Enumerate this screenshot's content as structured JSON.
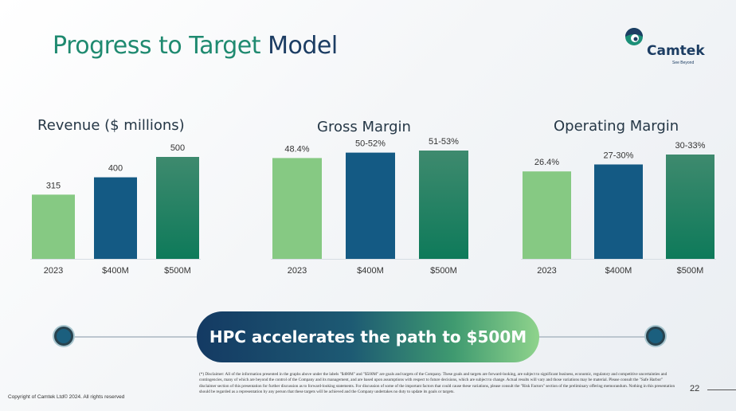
{
  "slide": {
    "title_part1": "Progress to Target",
    "title_part2": "Model",
    "logo_text": "Camtek",
    "logo_tagline": "See Beyond",
    "banner": "HPC accelerates the path to $500M",
    "disclaimer": "(*) Disclaimer: All of the information presented in the graphs above under the labels \"$400M\" and \"$500M\" are goals and targets of the Company. These goals and targets are forward-looking, are subject to significant business, economic, regulatory and competitive uncertainties and contingencies, many of which are beyond the control of the Company and its management, and are based upon assumptions with respect to future decisions, which are subject to change. Actual results will vary and those variations may be material. Please consult the \"Safe Harbor\" disclaimer section of this presentation for further discussion as to forward-looking statements. For discussion of some of the important factors that could cause these variations, please consult the \"Risk Factors\" section of the preliminary offering memorandum. Nothing in this presentation should be regarded as a representation by any person that these targets will be achieved and the Company undertakes no duty to update its goals or targets.",
    "copyright": "Copyright of Camtek Ltd© 2024. All rights reserved",
    "page_number": "22"
  },
  "colors": {
    "light_green": "#86c983",
    "dark_blue": "#145a84",
    "green_gradient_top": "#3e8a6e",
    "green_gradient_bottom": "#0e7a5a"
  },
  "chart_data": [
    {
      "type": "bar",
      "title": "Revenue ($ millions)",
      "categories": [
        "2023",
        "$400M",
        "$500M"
      ],
      "values": [
        315,
        400,
        500
      ],
      "data_labels": [
        "315",
        "400",
        "500"
      ],
      "ylim": [
        0,
        500
      ]
    },
    {
      "type": "bar",
      "title": "Gross Margin",
      "categories": [
        "2023",
        "$400M",
        "$500M"
      ],
      "values": [
        48.4,
        51,
        52
      ],
      "data_labels": [
        "48.4%",
        "50-52%",
        "51-53%"
      ],
      "ylim": [
        0,
        52
      ]
    },
    {
      "type": "bar",
      "title": "Operating Margin",
      "categories": [
        "2023",
        "$400M",
        "$500M"
      ],
      "values": [
        26.4,
        28.5,
        31.5
      ],
      "data_labels": [
        "26.4%",
        "27-30%",
        "30-33%"
      ],
      "ylim": [
        0,
        31.5
      ]
    }
  ]
}
